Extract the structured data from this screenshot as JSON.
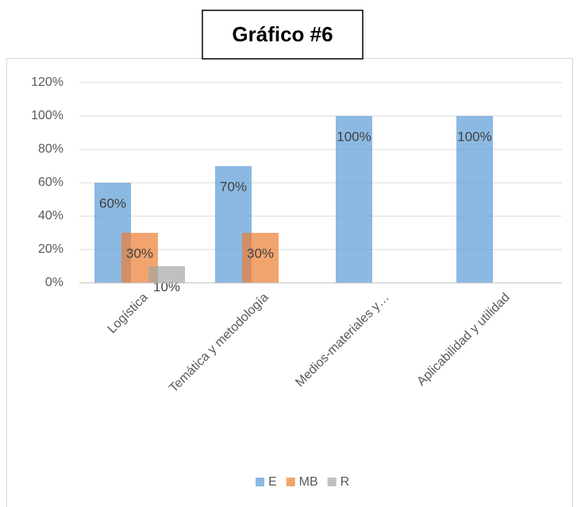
{
  "chart_data": {
    "type": "bar",
    "title": "Gráfico #6",
    "categories": [
      "Logística",
      "Temática y metodología",
      "Medios-materiales y…",
      "Aplicabilidad y utilidad"
    ],
    "series": [
      {
        "name": "E",
        "color": "#5b9bd5",
        "values": [
          60,
          70,
          100,
          100
        ],
        "value_labels": [
          "60%",
          "70%",
          "100%",
          "100%"
        ]
      },
      {
        "name": "MB",
        "color": "#ed7d31",
        "values": [
          30,
          30,
          null,
          null
        ],
        "value_labels": [
          "30%",
          "30%",
          null,
          null
        ]
      },
      {
        "name": "R",
        "color": "#a5a5a5",
        "values": [
          10,
          null,
          null,
          null
        ],
        "value_labels": [
          "10%",
          null,
          null,
          null
        ]
      }
    ],
    "ylim": [
      0,
      120
    ],
    "yticks": [
      {
        "value": 0,
        "label": "0%"
      },
      {
        "value": 20,
        "label": "20%"
      },
      {
        "value": 40,
        "label": "40%"
      },
      {
        "value": 60,
        "label": "60%"
      },
      {
        "value": 80,
        "label": "80%"
      },
      {
        "value": 100,
        "label": "100%"
      },
      {
        "value": 120,
        "label": "120%"
      }
    ],
    "grid": true,
    "legend": "bottom"
  }
}
